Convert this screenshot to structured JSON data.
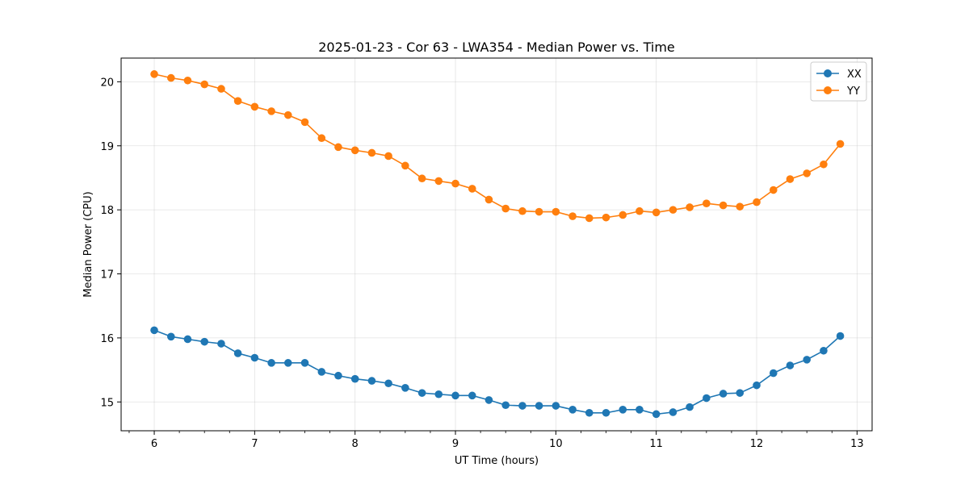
{
  "chart_data": {
    "type": "line",
    "title": "2025-01-23 - Cor 63 - LWA354 - Median Power vs. Time",
    "xlabel": "UT Time (hours)",
    "ylabel": "Median Power (CPU)",
    "xlim": [
      5.67,
      13.15
    ],
    "ylim": [
      14.55,
      20.37
    ],
    "xticks": [
      6,
      7,
      8,
      9,
      10,
      11,
      12,
      13
    ],
    "xtick_labels": [
      "6",
      "7",
      "8",
      "9",
      "10",
      "11",
      "12",
      "13"
    ],
    "yticks": [
      15,
      16,
      17,
      18,
      19,
      20
    ],
    "ytick_labels": [
      "15",
      "16",
      "17",
      "18",
      "19",
      "20"
    ],
    "grid": true,
    "legend_position": "top-right",
    "x": [
      6.0,
      6.167,
      6.333,
      6.5,
      6.667,
      6.833,
      7.0,
      7.167,
      7.333,
      7.5,
      7.667,
      7.833,
      8.0,
      8.167,
      8.333,
      8.5,
      8.667,
      8.833,
      9.0,
      9.167,
      9.333,
      9.5,
      9.667,
      9.833,
      10.0,
      10.167,
      10.333,
      10.5,
      10.667,
      10.833,
      11.0,
      11.167,
      11.333,
      11.5,
      11.667,
      11.833,
      12.0,
      12.167,
      12.333,
      12.5,
      12.667,
      12.833
    ],
    "series": [
      {
        "name": "XX",
        "color": "#1f77b4",
        "values": [
          16.12,
          16.02,
          15.98,
          15.94,
          15.91,
          15.76,
          15.69,
          15.61,
          15.61,
          15.61,
          15.47,
          15.41,
          15.36,
          15.33,
          15.29,
          15.22,
          15.14,
          15.12,
          15.1,
          15.1,
          15.03,
          14.95,
          14.94,
          14.94,
          14.94,
          14.88,
          14.83,
          14.83,
          14.88,
          14.88,
          14.81,
          14.84,
          14.92,
          15.06,
          15.13,
          15.14,
          15.26,
          15.45,
          15.57,
          15.66,
          15.8,
          16.03
        ]
      },
      {
        "name": "YY",
        "color": "#ff7f0e",
        "values": [
          20.12,
          20.06,
          20.02,
          19.96,
          19.89,
          19.7,
          19.61,
          19.54,
          19.48,
          19.37,
          19.12,
          18.98,
          18.93,
          18.89,
          18.84,
          18.69,
          18.49,
          18.45,
          18.41,
          18.33,
          18.16,
          18.02,
          17.98,
          17.97,
          17.97,
          17.9,
          17.87,
          17.88,
          17.92,
          17.98,
          17.96,
          18.0,
          18.04,
          18.1,
          18.07,
          18.05,
          18.12,
          18.31,
          18.48,
          18.57,
          18.71,
          19.03
        ]
      }
    ]
  }
}
